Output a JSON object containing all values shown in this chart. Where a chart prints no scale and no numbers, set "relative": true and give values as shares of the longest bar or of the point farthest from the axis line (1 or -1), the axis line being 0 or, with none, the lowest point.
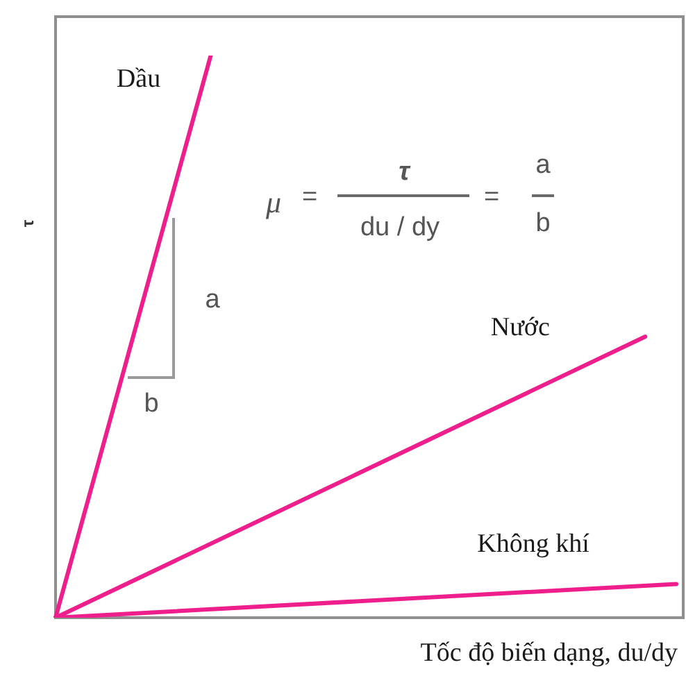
{
  "chart_data": {
    "type": "line",
    "relative": true,
    "marker": "none",
    "xlabel": "Tốc độ biến dạng, du/dy",
    "ylabel": "τ",
    "categories": [
      null,
      null,
      null,
      null,
      null,
      null,
      null,
      null,
      null,
      null,
      null,
      null,
      null,
      null,
      null,
      null,
      null,
      null,
      null,
      null,
      null
    ],
    "series": [
      {
        "name": "Dầu",
        "color": "#ee1f8d",
        "values": [
          0,
          null,
          null,
          null,
          null,
          1,
          null,
          null,
          null,
          null,
          null,
          null,
          null,
          null,
          null,
          null,
          null,
          null,
          null,
          null,
          null
        ]
      },
      {
        "name": "Nước",
        "color": "#ee1f8d",
        "values": [
          0,
          null,
          null,
          null,
          null,
          null,
          null,
          null,
          null,
          null,
          null,
          null,
          null,
          null,
          null,
          null,
          null,
          null,
          null,
          0.5,
          null
        ]
      },
      {
        "name": "Không khí",
        "color": "#ee1f8d",
        "values": [
          0,
          null,
          null,
          null,
          null,
          null,
          null,
          null,
          null,
          null,
          null,
          null,
          null,
          null,
          null,
          null,
          null,
          null,
          null,
          null,
          0.06
        ]
      }
    ],
    "annotations": [
      "μ",
      "=",
      "τ",
      "du / dy",
      "=",
      "a",
      "b",
      "a",
      "b"
    ]
  }
}
